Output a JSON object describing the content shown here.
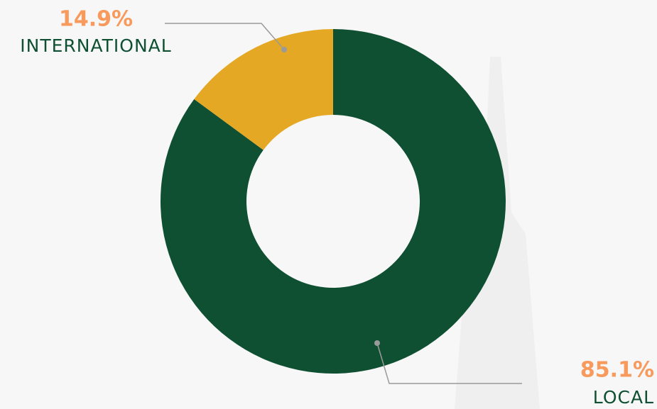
{
  "chart_data": {
    "type": "pie",
    "categories": [
      "LOCAL",
      "INTERNATIONAL"
    ],
    "values": [
      85.1,
      14.9
    ],
    "value_labels": [
      "85.1%",
      "14.9%"
    ],
    "colors": [
      "#0f5032",
      "#e4a824"
    ],
    "donut": true
  }
}
